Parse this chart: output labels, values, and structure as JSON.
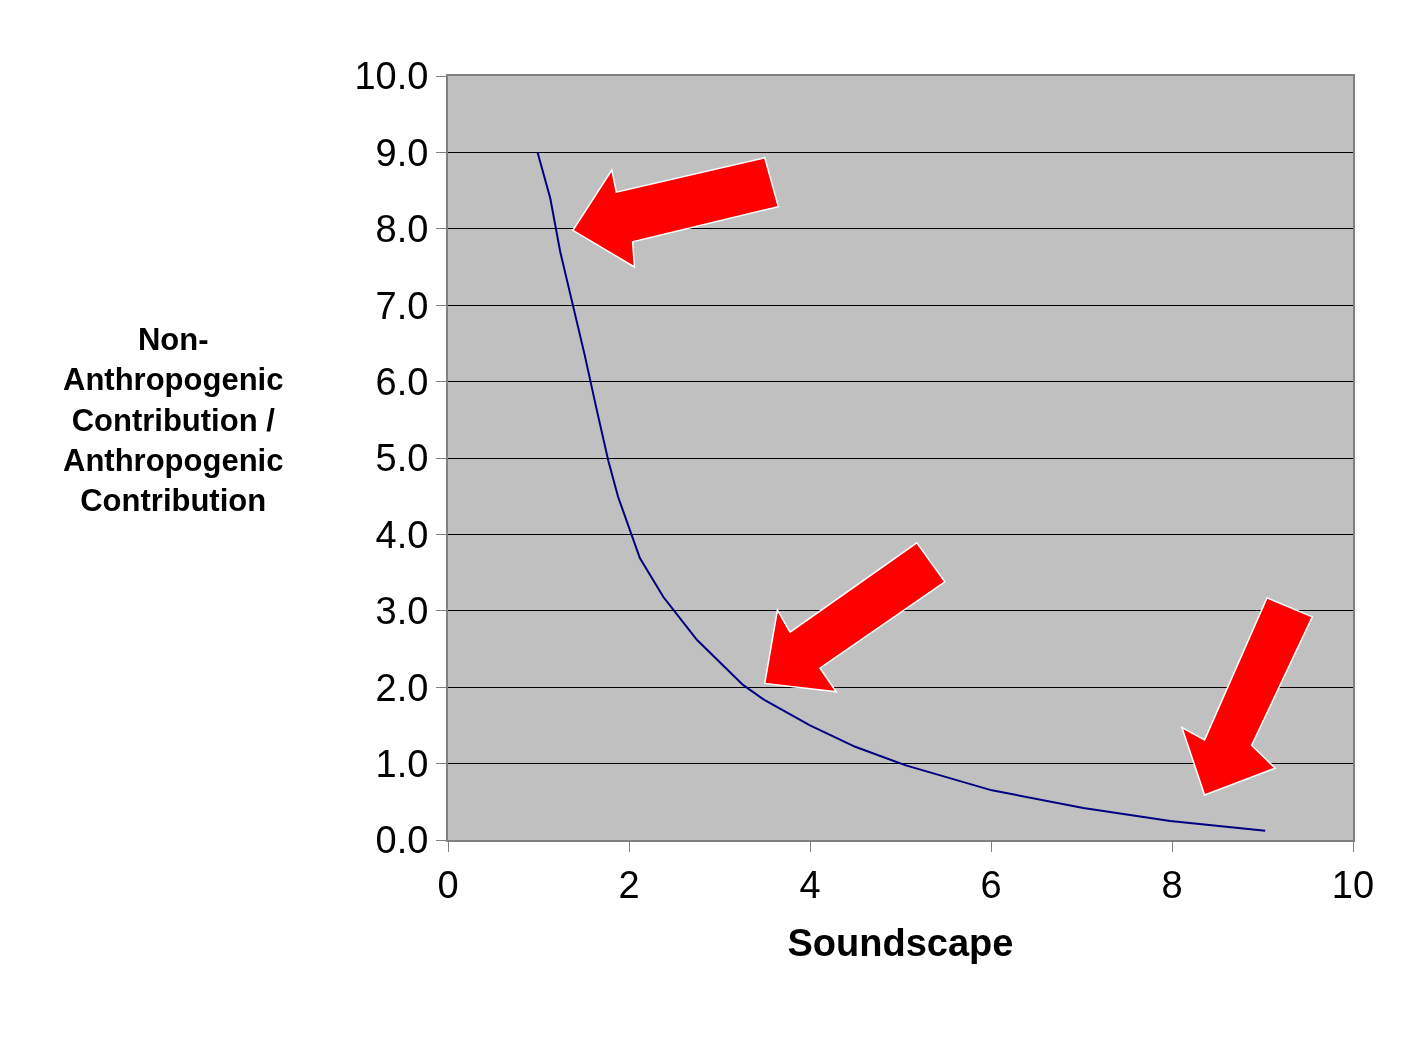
{
  "chart_data": {
    "type": "line",
    "xlabel": "Soundscape",
    "ylabel": "Non-Anthropogenic Contribution / Anthropogenic Contribution",
    "series": [
      {
        "color": "#000080",
        "x": [
          0.99,
          1.13,
          1.24,
          1.51,
          1.64,
          1.77,
          1.88,
          2.12,
          2.38,
          2.75,
          3.26,
          3.5,
          4.0,
          4.5,
          5.05,
          6.01,
          7.02,
          7.98,
          9.03
        ],
        "values": [
          9.0,
          8.4,
          7.7,
          6.35,
          5.65,
          4.97,
          4.49,
          3.69,
          3.18,
          2.62,
          2.03,
          1.83,
          1.5,
          1.22,
          0.98,
          0.65,
          0.42,
          0.25,
          0.12
        ]
      }
    ],
    "xlim": [
      0,
      10
    ],
    "xticks": [
      0,
      2,
      4,
      6,
      8,
      10
    ],
    "ylim": [
      0,
      10
    ],
    "yticks": [
      {
        "value": 0,
        "label": "0.0"
      },
      {
        "value": 1,
        "label": "1.0"
      },
      {
        "value": 2,
        "label": "2.0"
      },
      {
        "value": 3,
        "label": "3.0"
      },
      {
        "value": 4,
        "label": "4.0"
      },
      {
        "value": 5,
        "label": "5.0"
      },
      {
        "value": 6,
        "label": "6.0"
      },
      {
        "value": 7,
        "label": "7.0"
      },
      {
        "value": 8,
        "label": "8.0"
      },
      {
        "value": 9,
        "label": "9.0"
      },
      {
        "value": 10,
        "label": "10.0"
      }
    ],
    "grid": "y",
    "legend": false,
    "marker": "none",
    "line_style": "solid"
  }
}
